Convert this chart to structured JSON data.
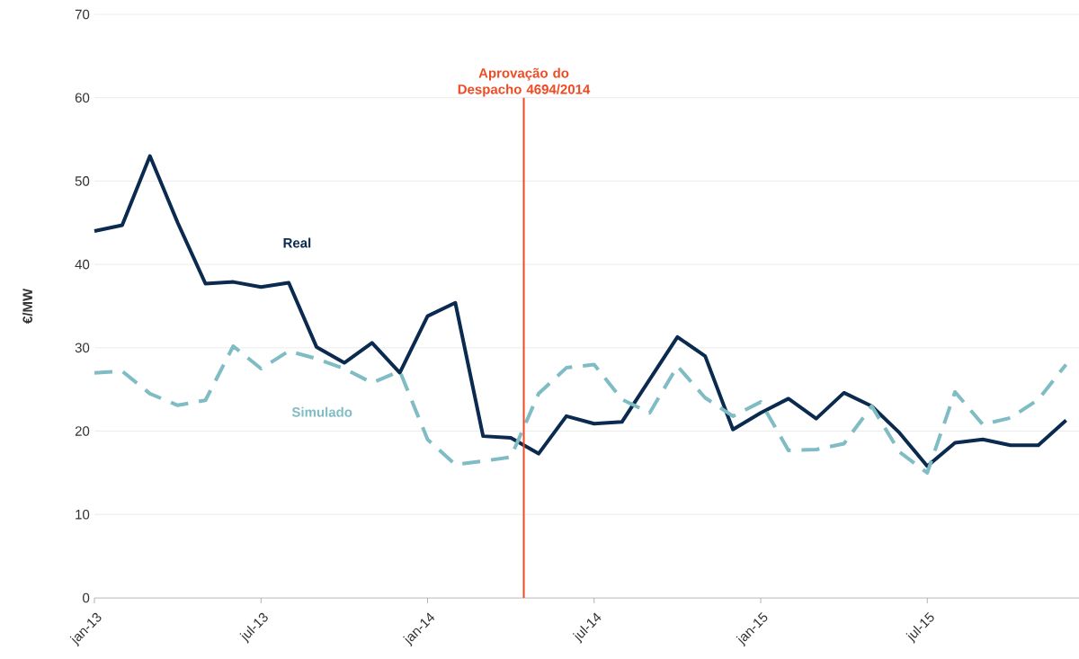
{
  "chart_data": {
    "type": "line",
    "ylabel": "€/MW",
    "x": [
      "2013-01",
      "2013-02",
      "2013-03",
      "2013-04",
      "2013-05",
      "2013-06",
      "2013-07",
      "2013-08",
      "2013-09",
      "2013-10",
      "2013-11",
      "2013-12",
      "2014-01",
      "2014-02",
      "2014-03",
      "2014-04",
      "2014-05",
      "2014-06",
      "2014-07",
      "2014-08",
      "2014-09",
      "2014-10",
      "2014-11",
      "2014-12",
      "2015-01",
      "2015-02",
      "2015-03",
      "2015-04",
      "2015-05",
      "2015-06",
      "2015-07",
      "2015-08",
      "2015-09",
      "2015-10",
      "2015-11",
      "2015-12"
    ],
    "series": [
      {
        "name": "Real",
        "color": "#0b2a4f",
        "line_style": "solid",
        "values": [
          44,
          44.7,
          53,
          45,
          37.7,
          37.9,
          37.3,
          37.8,
          30.1,
          28.2,
          30.6,
          27,
          33.8,
          35.4,
          19.4,
          19.2,
          17.3,
          21.8,
          20.9,
          21.1,
          26.2,
          31.3,
          29,
          20.2,
          22.2,
          23.9,
          21.5,
          24.6,
          23,
          19.8,
          15.8,
          18.6,
          19,
          18.3,
          18.3,
          21.3
        ]
      },
      {
        "name": "Simulado",
        "color": "#7fbcc4",
        "line_style": "dashed",
        "values": [
          27,
          27.2,
          24.5,
          23.1,
          23.7,
          30.2,
          27.5,
          29.6,
          28.7,
          27.5,
          25.8,
          27.2,
          19,
          16,
          16.4,
          16.9,
          24.5,
          27.6,
          28,
          23.8,
          22.2,
          27.8,
          24,
          21.8,
          23.5,
          17.7,
          17.8,
          18.5,
          23,
          17.5,
          15,
          24.7,
          20.8,
          21.6,
          23.8,
          28
        ]
      }
    ],
    "xlim": [
      "2013-01",
      "2015-12-15"
    ],
    "xticks": [
      {
        "value": "2013-01",
        "label": "jan-13"
      },
      {
        "value": "2013-07",
        "label": "jul-13"
      },
      {
        "value": "2014-01",
        "label": "jan-14"
      },
      {
        "value": "2014-07",
        "label": "jul-14"
      },
      {
        "value": "2015-01",
        "label": "jan-15"
      },
      {
        "value": "2015-07",
        "label": "jul-15"
      }
    ],
    "ylim": [
      0,
      70
    ],
    "yticks": [
      0,
      10,
      20,
      30,
      40,
      50,
      60,
      70
    ],
    "grid": "y",
    "legend": false,
    "ref_lines": [
      {
        "axis": "x",
        "value": "2014-04-15",
        "label": "Aprovação do Despacho 4694/2014",
        "color": "#f04a24",
        "line_style": "solid"
      }
    ]
  }
}
